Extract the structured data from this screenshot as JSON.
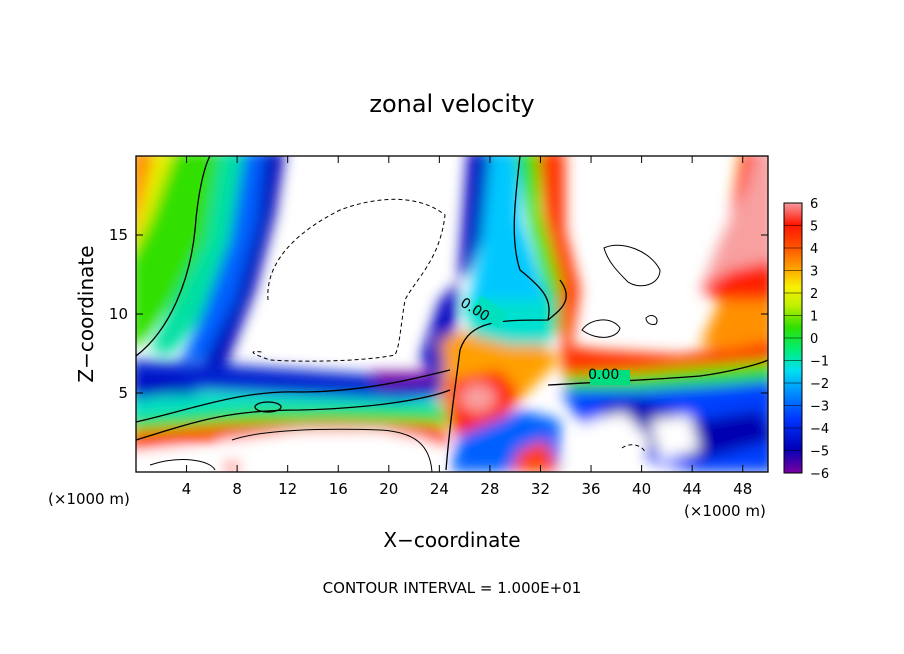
{
  "chart_data": {
    "type": "heatmap",
    "title": "zonal velocity",
    "xlabel": "X−coordinate",
    "ylabel": "Z−coordinate",
    "x_unit": "(×1000 m)",
    "y_unit": "(×1000 m)",
    "xlim": [
      0,
      50
    ],
    "ylim": [
      0,
      20
    ],
    "x_ticks": [
      4,
      8,
      12,
      16,
      20,
      24,
      28,
      32,
      36,
      40,
      44,
      48
    ],
    "y_ticks": [
      5,
      10,
      15
    ],
    "x_tick_labels": [
      "4",
      "8",
      "12",
      "16",
      "20",
      "24",
      "28",
      "32",
      "36",
      "40",
      "44",
      "48"
    ],
    "y_tick_labels": [
      "5",
      "10",
      "15"
    ],
    "contour_labels": [
      {
        "text": "0.00",
        "x": 26.8,
        "z": 10.0
      },
      {
        "text": "0.00",
        "x": 37.0,
        "z": 5.9
      }
    ],
    "colorbar": {
      "min": -6,
      "max": 6,
      "tick_labels": [
        "6",
        "5",
        "4",
        "3",
        "2",
        "1",
        "0",
        "−1",
        "−2",
        "−3",
        "−4",
        "−5",
        "−6"
      ]
    },
    "footnote": "CONTOUR INTERVAL = 1.000E+01",
    "grid": false
  },
  "colors": {
    "background": "#ffffff",
    "colormap": [
      "#7a00a0",
      "#0000b8",
      "#0035ff",
      "#0090ff",
      "#00e0f0",
      "#00ee70",
      "#30e000",
      "#c0f000",
      "#f8f000",
      "#ffa000",
      "#ff5000",
      "#ff1500",
      "#f89aa0"
    ]
  }
}
